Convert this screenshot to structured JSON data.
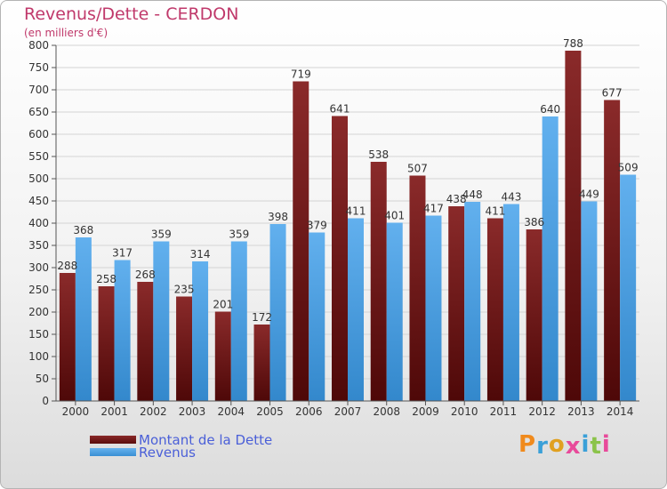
{
  "title": "Revenus/Dette - CERDON",
  "subtitle": "(en milliers d'€)",
  "logo": {
    "text": "Proxiti",
    "letter_colors": [
      "#f08a1c",
      "#3aa0d8",
      "#e0a020",
      "#e84a9a",
      "#3aa0d8",
      "#8bc34a",
      "#e84a9a"
    ]
  },
  "colors": {
    "dette": "#7a1e1e",
    "revenus": "#52a6e8",
    "title": "#c0396b",
    "legend_text": "#4a5fd8"
  },
  "chart_data": {
    "type": "bar",
    "categories": [
      "2000",
      "2001",
      "2002",
      "2003",
      "2004",
      "2005",
      "2006",
      "2007",
      "2008",
      "2009",
      "2010",
      "2011",
      "2012",
      "2013",
      "2014"
    ],
    "series": [
      {
        "name": "Montant de la Dette",
        "values": [
          288,
          258,
          268,
          235,
          201,
          172,
          719,
          641,
          538,
          507,
          438,
          411,
          386,
          788,
          677
        ]
      },
      {
        "name": "Revenus",
        "values": [
          368,
          317,
          359,
          314,
          359,
          398,
          379,
          411,
          401,
          417,
          448,
          443,
          640,
          449,
          509
        ]
      }
    ],
    "yticks": [
      0,
      50,
      100,
      150,
      200,
      250,
      300,
      350,
      400,
      450,
      500,
      550,
      600,
      650,
      700,
      750,
      800
    ],
    "ylim": [
      0,
      800
    ],
    "grid": true,
    "legend": "bottom-left"
  }
}
